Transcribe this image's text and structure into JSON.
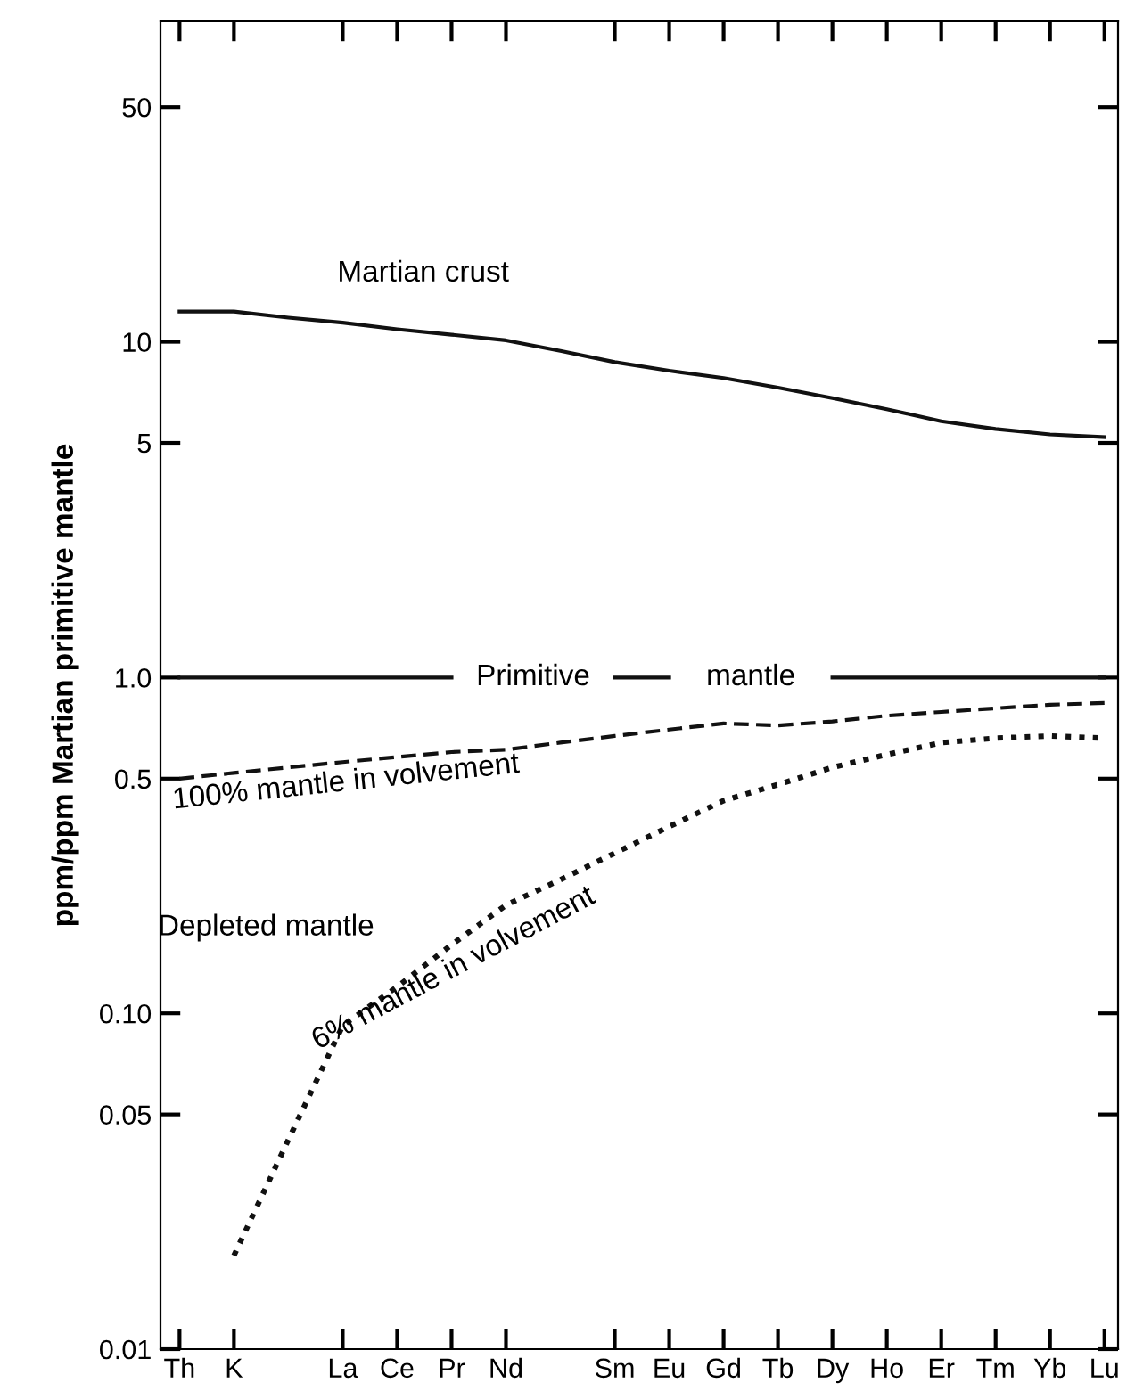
{
  "chart_data": {
    "type": "line",
    "ylabel": "ppm/ppm Martian primitive mantle",
    "categories": [
      "Th",
      "K",
      null,
      "La",
      "Ce",
      "Pr",
      "Nd",
      null,
      "Sm",
      "Eu",
      "Gd",
      "Tb",
      "Dy",
      "Ho",
      "Er",
      "Tm",
      "Yb",
      "Lu"
    ],
    "series": [
      {
        "color": "#111111",
        "line_style": "solid",
        "values": [
          12.3,
          12.3,
          11.8,
          11.4,
          10.9,
          10.5,
          10.1,
          9.4,
          8.7,
          8.2,
          7.8,
          7.3,
          6.8,
          6.3,
          5.8,
          5.5,
          5.3,
          5.2
        ]
      },
      {
        "color": "#111111",
        "line_style": "solid",
        "values": [
          1.0,
          1.0,
          1.0,
          1.0,
          1.0,
          1.0,
          null,
          null,
          1.0,
          1.0,
          null,
          null,
          1.0,
          1.0,
          1.0,
          1.0,
          1.0,
          1.0
        ]
      },
      {
        "color": "#111111",
        "line_style": "dashed",
        "values": [
          0.5,
          0.52,
          0.54,
          0.56,
          0.58,
          0.6,
          0.61,
          0.64,
          0.67,
          0.7,
          0.73,
          0.72,
          0.74,
          0.77,
          0.79,
          0.81,
          0.83,
          0.84
        ]
      },
      {
        "color": "#111111",
        "line_style": "dotted",
        "values": [
          null,
          0.019,
          0.042,
          0.092,
          0.12,
          0.16,
          0.21,
          0.25,
          0.3,
          0.36,
          0.43,
          0.48,
          0.54,
          0.59,
          0.64,
          0.66,
          0.67,
          0.66
        ]
      }
    ],
    "log": true,
    "ylim": [
      0.01,
      90
    ],
    "yticks": [
      0.01,
      0.05,
      {
        "value": 0.1,
        "label": "0.10"
      },
      0.5,
      {
        "value": 1,
        "label": "1.0"
      },
      5,
      10,
      50
    ],
    "annotations": [
      "Martian crust",
      "Primitive",
      "mantle",
      "100% mantle in volvement",
      "6% mantle in volvement",
      "Depleted mantle"
    ],
    "grid": false,
    "legend": false,
    "marker": "none"
  }
}
